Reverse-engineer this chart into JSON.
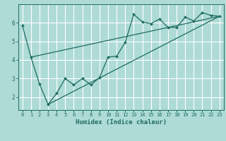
{
  "xlabel": "Humidex (Indice chaleur)",
  "bg_color": "#aedbd6",
  "grid_color": "#ffffff",
  "line_color": "#1e6b60",
  "xlim": [
    -0.5,
    23.5
  ],
  "ylim": [
    1.3,
    7.0
  ],
  "yticks": [
    2,
    3,
    4,
    5,
    6
  ],
  "xticks": [
    0,
    1,
    2,
    3,
    4,
    5,
    6,
    7,
    8,
    9,
    10,
    11,
    12,
    13,
    14,
    15,
    16,
    17,
    18,
    19,
    20,
    21,
    22,
    23
  ],
  "line1_x": [
    0,
    1,
    2,
    3,
    4,
    5,
    6,
    7,
    8,
    9,
    10,
    11,
    12,
    13,
    14,
    15,
    16,
    17,
    18,
    19,
    20,
    21,
    22,
    23
  ],
  "line1_y": [
    5.85,
    4.15,
    2.7,
    1.6,
    2.2,
    3.0,
    2.65,
    3.0,
    2.65,
    3.05,
    4.15,
    4.2,
    4.95,
    6.45,
    6.05,
    5.95,
    6.2,
    5.75,
    5.75,
    6.3,
    6.1,
    6.55,
    6.4,
    6.35
  ],
  "line2_x": [
    1,
    23
  ],
  "line2_y": [
    4.15,
    6.35
  ],
  "line3_x": [
    3,
    23
  ],
  "line3_y": [
    1.6,
    6.35
  ],
  "xlabel_fontsize": 6.5,
  "tick_fontsize_x": 5.0,
  "tick_fontsize_y": 5.5
}
